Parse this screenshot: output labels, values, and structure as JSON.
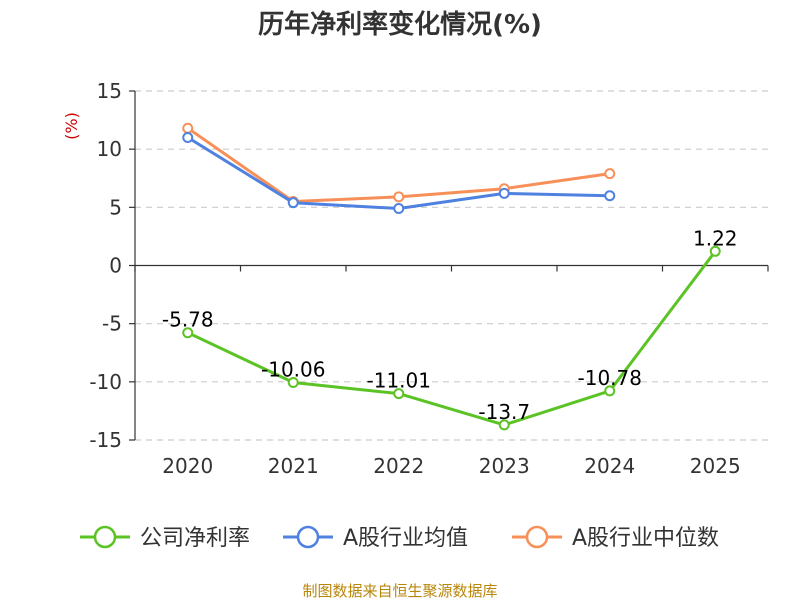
{
  "chart_data": {
    "type": "line",
    "title": "历年净利率变化情况(%)",
    "ylabel": "(%)",
    "xlabel": "",
    "categories": [
      "2020",
      "2021",
      "2022",
      "2023",
      "2024",
      "2025"
    ],
    "ylim": [
      -15,
      15
    ],
    "yticks": [
      15,
      10,
      5,
      0,
      -5,
      -10,
      -15
    ],
    "grid": true,
    "legend_placement": "bottom",
    "series": [
      {
        "name": "公司净利率",
        "color": "#5bc324",
        "values": [
          -5.78,
          -10.06,
          -11.01,
          -13.7,
          -10.78,
          1.22
        ],
        "labels": [
          "-5.78",
          "-10.06",
          "-11.01",
          "-13.7",
          "-10.78",
          "1.22"
        ]
      },
      {
        "name": "A股行业均值",
        "color": "#4f81e0",
        "values": [
          11.0,
          5.4,
          4.9,
          6.2,
          6.0,
          null
        ]
      },
      {
        "name": "A股行业中位数",
        "color": "#f79058",
        "values": [
          11.8,
          5.5,
          5.9,
          6.6,
          7.9,
          null
        ]
      }
    ],
    "source": "制图数据来自恒生聚源数据库"
  }
}
